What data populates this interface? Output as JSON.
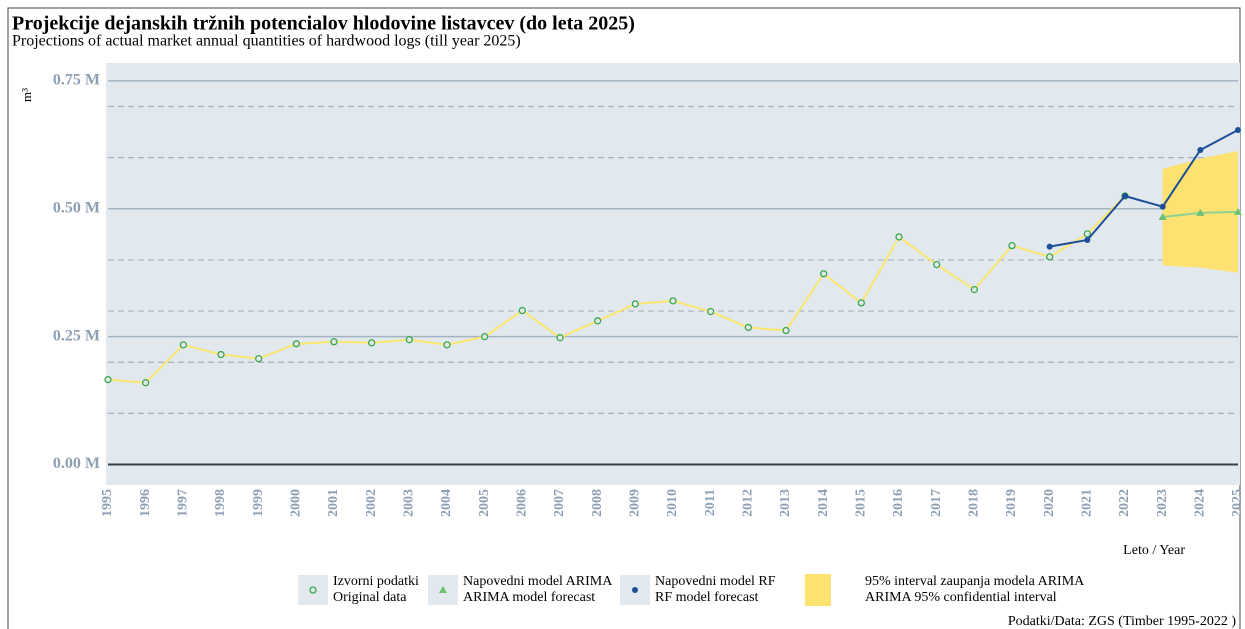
{
  "chart_data": {
    "type": "line",
    "title": "Projekcije dejanskih tržnih potencialov hlodovine listavcev (do leta 2025)",
    "subtitle": "Projections of actual market annual quantities of hardwood logs (till year 2025)",
    "y_label": "m³",
    "x_label": "Leto / Year",
    "source": "Podatki/Data: ZGS (Timber 1995-2022 )",
    "xlim": [
      1995,
      2025
    ],
    "xticks": [
      1995,
      1996,
      1997,
      1998,
      1999,
      2000,
      2001,
      2002,
      2003,
      2004,
      2005,
      2006,
      2007,
      2008,
      2009,
      2010,
      2011,
      2012,
      2013,
      2014,
      2015,
      2016,
      2017,
      2018,
      2019,
      2020,
      2021,
      2022,
      2023,
      2024,
      2025
    ],
    "ylim": [
      -40000,
      785000
    ],
    "yticks": [
      {
        "value": 0,
        "label": "0.00 M"
      },
      {
        "value": 250000,
        "label": "0.25 M"
      },
      {
        "value": 500000,
        "label": "0.50 M"
      },
      {
        "value": 750000,
        "label": "0.75 M"
      }
    ],
    "minor_yticks": [
      100000,
      200000,
      300000,
      400000,
      600000,
      700000
    ],
    "grid": true,
    "legend": "bottom",
    "series": [
      {
        "name": "Izvorni podatki",
        "name_en": "Original data",
        "color": "#fbe66e",
        "marker_color": "#3aa84a",
        "marker": "circle",
        "x": [
          1995,
          1996,
          1997,
          1998,
          1999,
          2000,
          2001,
          2002,
          2003,
          2004,
          2005,
          2006,
          2007,
          2008,
          2009,
          2010,
          2011,
          2012,
          2013,
          2014,
          2015,
          2016,
          2017,
          2018,
          2019,
          2020,
          2021,
          2022
        ],
        "values": [
          166000,
          160000,
          234000,
          215000,
          207000,
          236000,
          240000,
          238000,
          244000,
          234000,
          250000,
          301000,
          248000,
          281000,
          314000,
          320000,
          299000,
          268000,
          262000,
          373000,
          316000,
          445000,
          391000,
          342000,
          428000,
          406000,
          451000,
          525000
        ]
      },
      {
        "name": "Napovedni model ARIMA",
        "name_en": "ARIMA model forecast",
        "color": "#8fd18f",
        "marker_color": "#6cc070",
        "marker": "triangle",
        "x": [
          2023,
          2024,
          2025
        ],
        "values": [
          484000,
          492000,
          494000
        ]
      },
      {
        "name": "Napovedni model RF",
        "name_en": "RF model forecast",
        "color": "#1f4e99",
        "marker_color": "#1f4e99",
        "marker": "dot",
        "x": [
          2020,
          2021,
          2022,
          2023,
          2024,
          2025
        ],
        "values": [
          426000,
          439000,
          525000,
          504000,
          615000,
          654000
        ]
      }
    ],
    "band": {
      "name": "95% interval zaupanja modela ARIMA",
      "name_en": "ARIMA 95% confidential interval",
      "color": "#fde272",
      "x": [
        2023,
        2024,
        2025
      ],
      "lower": [
        389000,
        385000,
        375000
      ],
      "upper": [
        578000,
        598000,
        613000
      ]
    }
  }
}
